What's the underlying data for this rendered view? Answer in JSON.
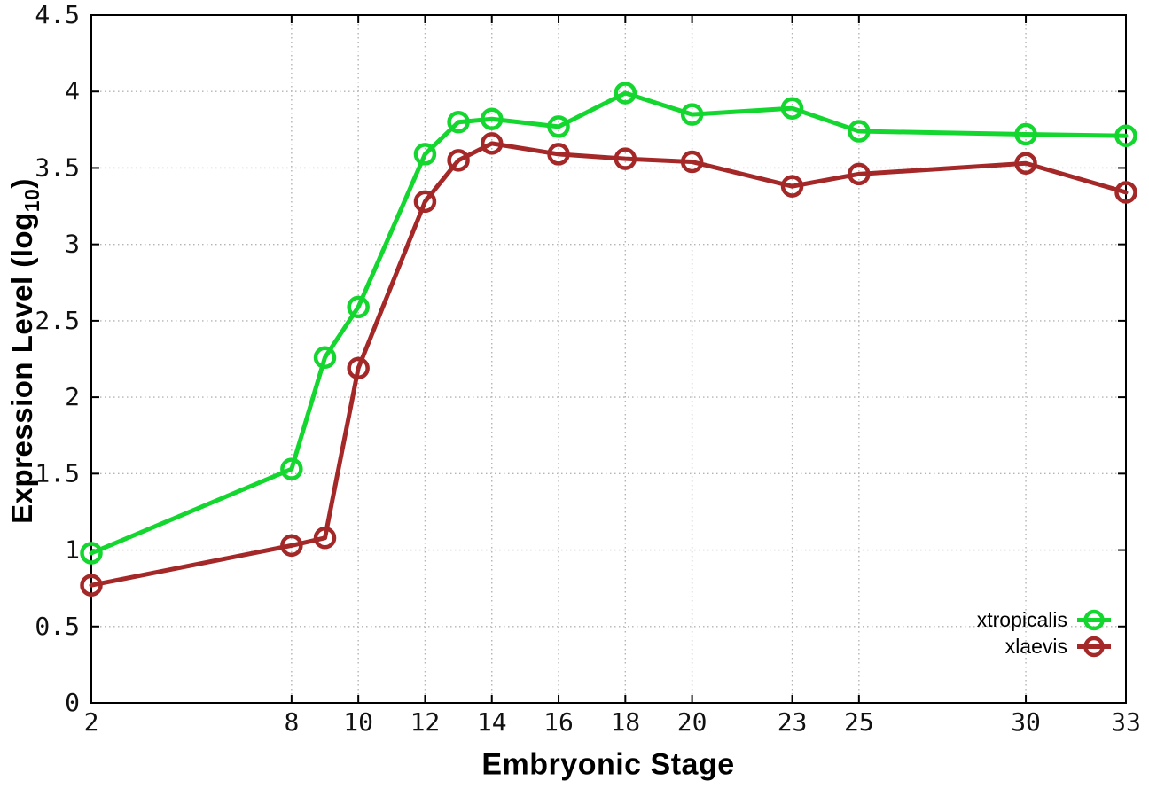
{
  "chart_data": {
    "type": "line",
    "title": "",
    "xlabel": "Embryonic Stage",
    "ylabel_prefix": "Expression Level (log",
    "ylabel_sub": "10",
    "ylabel_suffix": ")",
    "xlim": [
      2,
      33
    ],
    "ylim": [
      0,
      4.5
    ],
    "grid": "dotted",
    "legend_position": "bottom-right-inside",
    "x": [
      2,
      8,
      9,
      10,
      12,
      13,
      14,
      16,
      18,
      20,
      23,
      25,
      30,
      33
    ],
    "xtick_values": [
      2,
      8,
      10,
      12,
      14,
      16,
      18,
      20,
      23,
      25,
      30,
      33
    ],
    "xtick_labels": [
      "2",
      "8",
      "10",
      "12",
      "14",
      "16",
      "18",
      "20",
      "23",
      "25",
      "30",
      "33"
    ],
    "ytick_values": [
      0,
      0.5,
      1,
      1.5,
      2,
      2.5,
      3,
      3.5,
      4,
      4.5
    ],
    "ytick_labels": [
      "0",
      "0.5",
      "1",
      "1.5",
      "2",
      "2.5",
      "3",
      "3.5",
      "4",
      "4.5"
    ],
    "series": [
      {
        "name": "xtropicalis",
        "color": "#13d62f",
        "marker": "open-circle",
        "values": [
          0.98,
          1.53,
          2.26,
          2.59,
          3.59,
          3.8,
          3.82,
          3.77,
          3.99,
          3.85,
          3.89,
          3.74,
          3.72,
          3.71
        ]
      },
      {
        "name": "xlaevis",
        "color": "#a52828",
        "marker": "open-circle",
        "values": [
          0.77,
          1.03,
          1.08,
          2.19,
          3.28,
          3.55,
          3.66,
          3.59,
          3.56,
          3.54,
          3.38,
          3.46,
          3.53,
          3.34
        ]
      }
    ],
    "style": {
      "grid_color": "#b4b4b4",
      "border_color": "#000000",
      "background": "#ffffff"
    }
  }
}
